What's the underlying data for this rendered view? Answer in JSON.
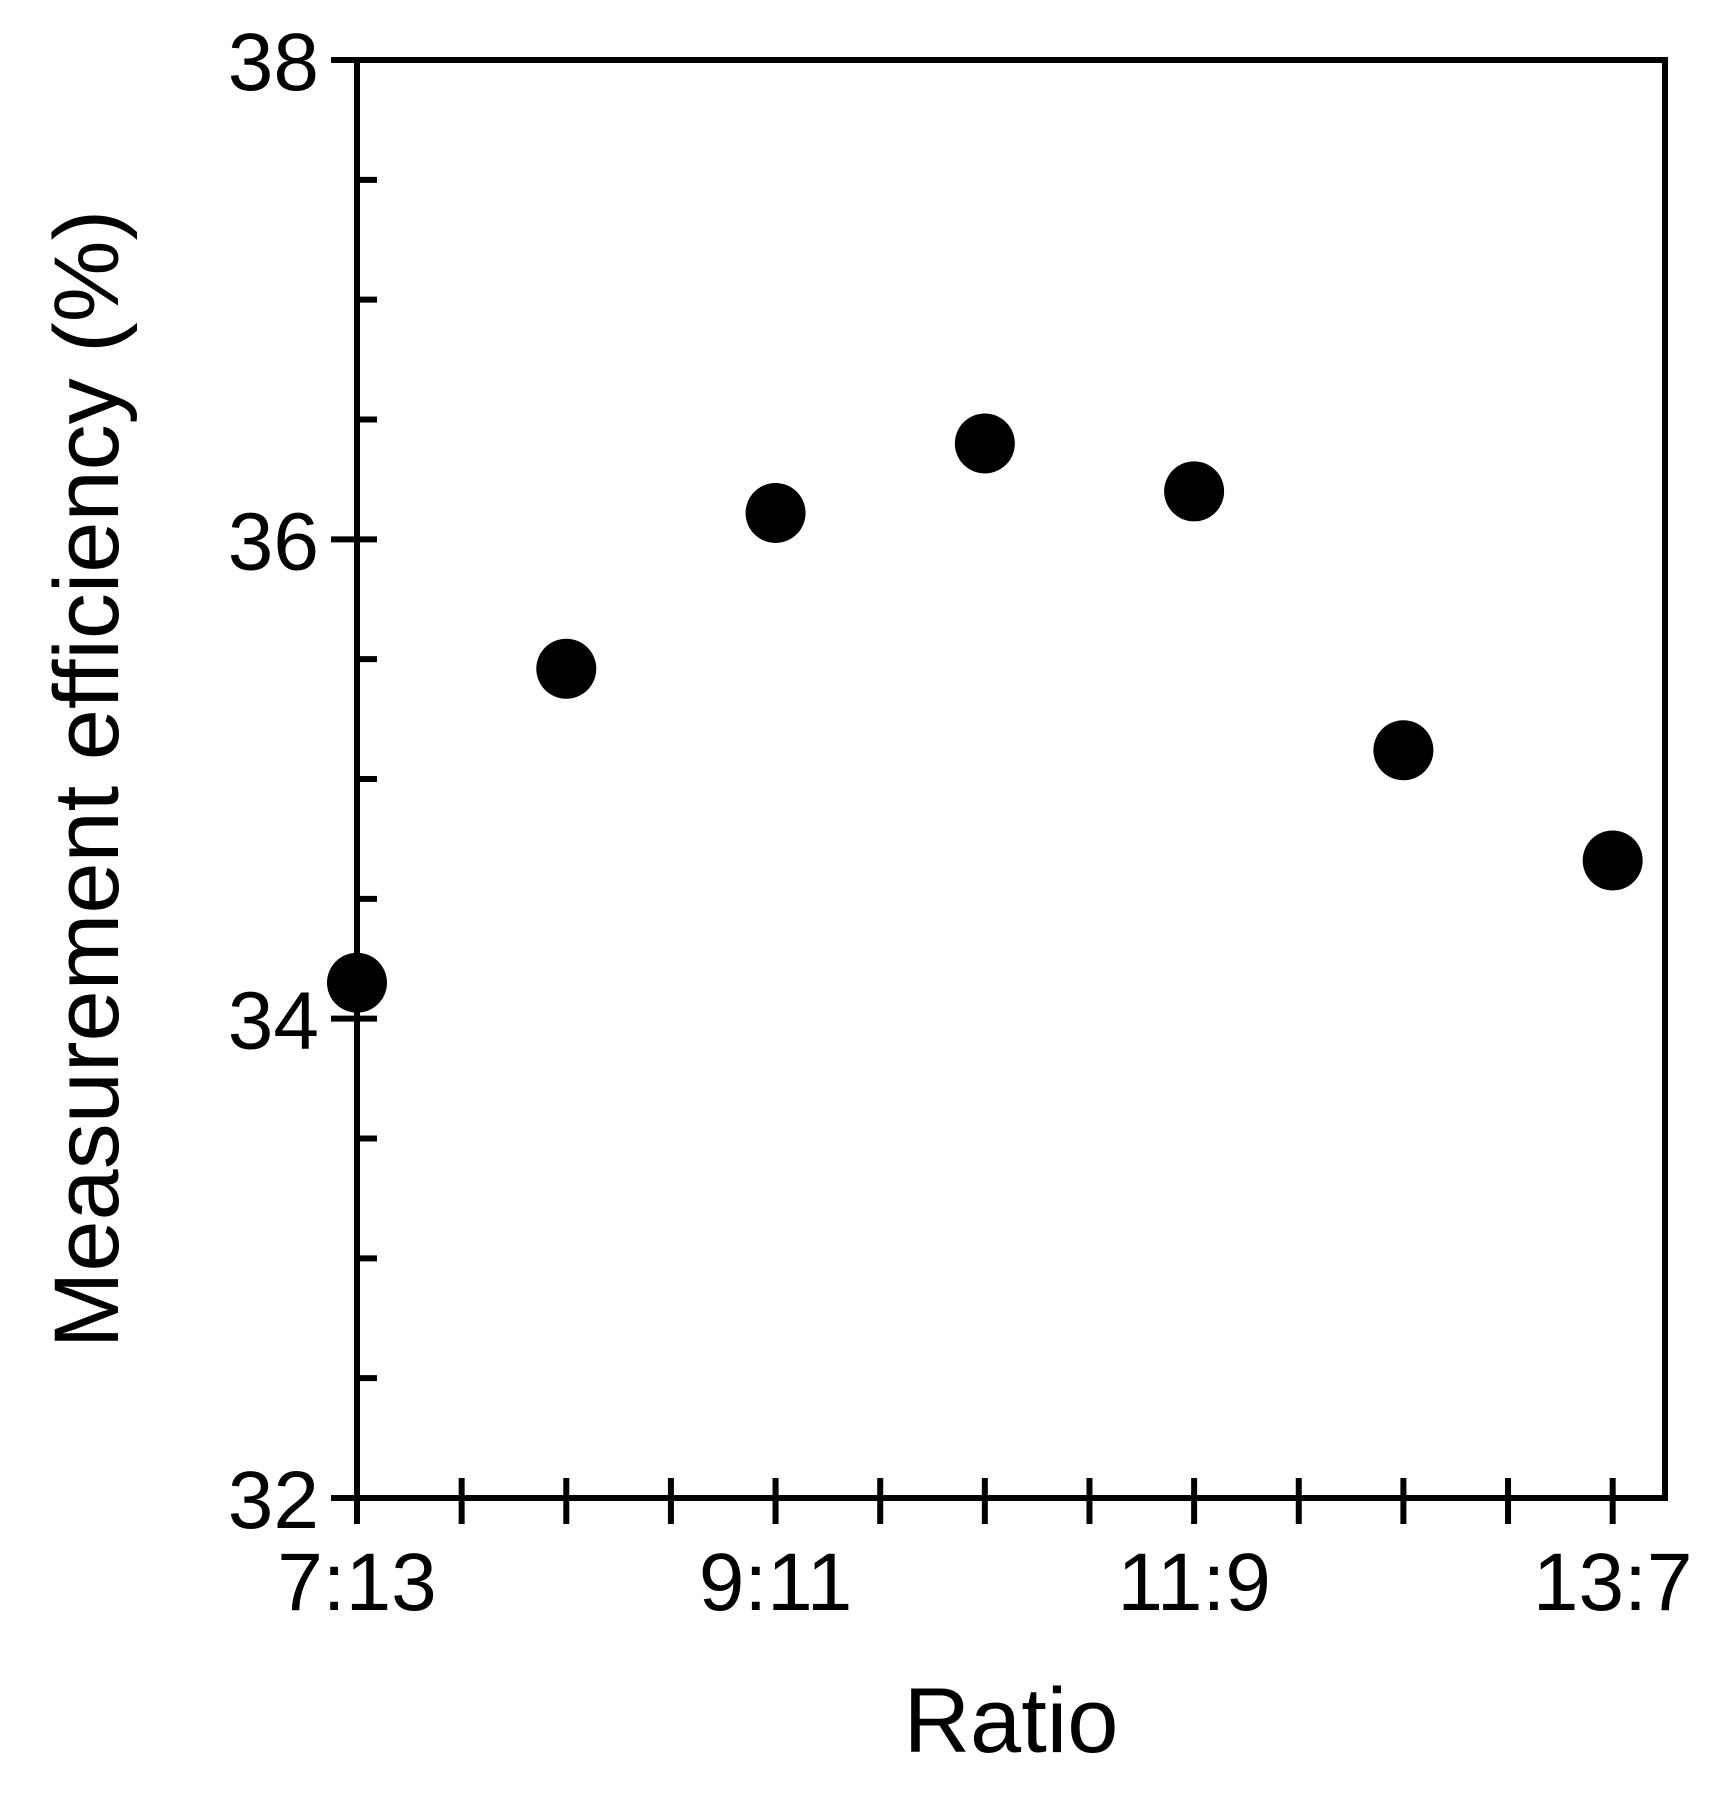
{
  "chart_data": {
    "type": "scatter",
    "title": "",
    "xlabel": "Ratio",
    "ylabel": "Measurement efficiency (%)",
    "x_tick_labels": [
      "7:13",
      "9:11",
      "11:9",
      "13:7"
    ],
    "x_tick_values": [
      7,
      9,
      11,
      13
    ],
    "xlim": [
      7,
      13.25
    ],
    "ylim": [
      32,
      38
    ],
    "y_major_ticks": [
      32,
      34,
      36,
      38
    ],
    "y_tick_labels": [
      "32",
      "34",
      "36",
      "38"
    ],
    "y_minor_step": 0.5,
    "x_minor_step": 0.5,
    "grid": false,
    "legend": "none",
    "marker_color": "#000000",
    "points": [
      {
        "x": 7,
        "y": 34.15
      },
      {
        "x": 8,
        "y": 35.46
      },
      {
        "x": 9,
        "y": 36.11
      },
      {
        "x": 10,
        "y": 36.4
      },
      {
        "x": 11,
        "y": 36.2
      },
      {
        "x": 12,
        "y": 35.12
      },
      {
        "x": 13,
        "y": 34.66
      }
    ]
  }
}
